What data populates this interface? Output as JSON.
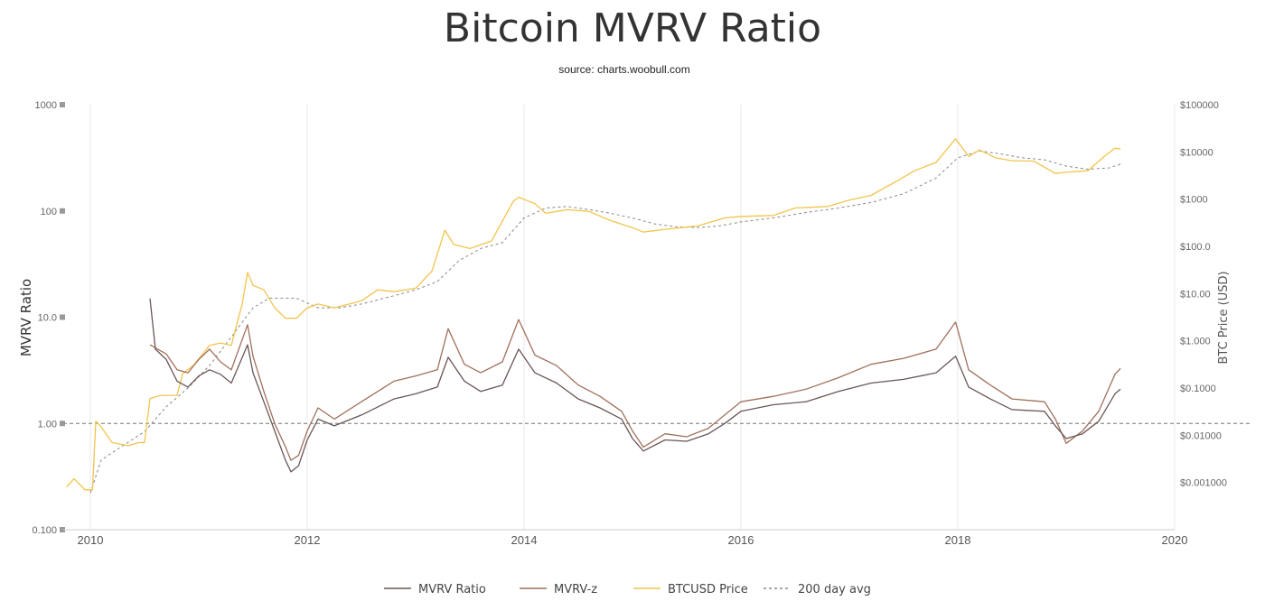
{
  "chart_data": {
    "type": "line",
    "title": "Bitcoin MVRV Ratio",
    "subtitle": "source: charts.woobull.com",
    "y_left_label": "MVRV Ratio",
    "y_right_label": "BTC Price (USD)",
    "y_left_scale": "log",
    "y_right_scale": "log",
    "y_left_range": [
      0.1,
      1000
    ],
    "y_right_range": [
      0.0001,
      100000
    ],
    "x_range": [
      2009.75,
      2020
    ],
    "x_ticks": [
      "2010",
      "2012",
      "2014",
      "2016",
      "2018",
      "2020"
    ],
    "y_left_ticks": [
      "0.100",
      "1.00",
      "10.0",
      "100",
      "1000"
    ],
    "y_right_ticks": [
      "$0.001000",
      "$0.01000",
      "$0.1000",
      "$1.000",
      "$10.00",
      "$100.0",
      "$1000",
      "$10000",
      "$100000"
    ],
    "reference_line_y": 1,
    "grid": "vertical gridlines at year ticks",
    "legend_position": "bottom-center",
    "series": [
      {
        "name": "MVRV Ratio",
        "axis": "left",
        "color": "#6b5656",
        "points": [
          [
            2010.55,
            15
          ],
          [
            2010.6,
            5
          ],
          [
            2010.7,
            4
          ],
          [
            2010.8,
            2.5
          ],
          [
            2010.9,
            2.2
          ],
          [
            2011.0,
            2.8
          ],
          [
            2011.1,
            3.2
          ],
          [
            2011.2,
            2.9
          ],
          [
            2011.3,
            2.4
          ],
          [
            2011.45,
            5.5
          ],
          [
            2011.5,
            3
          ],
          [
            2011.6,
            1.6
          ],
          [
            2011.7,
            0.85
          ],
          [
            2011.8,
            0.45
          ],
          [
            2011.85,
            0.35
          ],
          [
            2011.92,
            0.4
          ],
          [
            2012.0,
            0.7
          ],
          [
            2012.1,
            1.1
          ],
          [
            2012.25,
            0.95
          ],
          [
            2012.5,
            1.2
          ],
          [
            2012.8,
            1.7
          ],
          [
            2013.0,
            1.9
          ],
          [
            2013.2,
            2.2
          ],
          [
            2013.3,
            4.2
          ],
          [
            2013.45,
            2.5
          ],
          [
            2013.6,
            2.0
          ],
          [
            2013.8,
            2.3
          ],
          [
            2013.95,
            5.0
          ],
          [
            2014.1,
            3.0
          ],
          [
            2014.3,
            2.4
          ],
          [
            2014.5,
            1.7
          ],
          [
            2014.7,
            1.4
          ],
          [
            2014.9,
            1.1
          ],
          [
            2015.0,
            0.72
          ],
          [
            2015.1,
            0.55
          ],
          [
            2015.3,
            0.7
          ],
          [
            2015.5,
            0.68
          ],
          [
            2015.7,
            0.8
          ],
          [
            2015.85,
            1.0
          ],
          [
            2016.0,
            1.3
          ],
          [
            2016.3,
            1.5
          ],
          [
            2016.6,
            1.6
          ],
          [
            2016.9,
            2.0
          ],
          [
            2017.2,
            2.4
          ],
          [
            2017.5,
            2.6
          ],
          [
            2017.8,
            3.0
          ],
          [
            2017.98,
            4.3
          ],
          [
            2018.1,
            2.2
          ],
          [
            2018.3,
            1.7
          ],
          [
            2018.5,
            1.35
          ],
          [
            2018.8,
            1.3
          ],
          [
            2018.9,
            0.95
          ],
          [
            2019.0,
            0.72
          ],
          [
            2019.15,
            0.8
          ],
          [
            2019.3,
            1.05
          ],
          [
            2019.45,
            1.9
          ],
          [
            2019.5,
            2.1
          ]
        ]
      },
      {
        "name": "MVRV-z",
        "axis": "left",
        "color": "#a0705c",
        "points": [
          [
            2010.55,
            5.5
          ],
          [
            2010.7,
            4.5
          ],
          [
            2010.8,
            3.2
          ],
          [
            2010.9,
            3.0
          ],
          [
            2011.0,
            4.0
          ],
          [
            2011.1,
            5.0
          ],
          [
            2011.2,
            3.8
          ],
          [
            2011.3,
            3.2
          ],
          [
            2011.45,
            8.5
          ],
          [
            2011.5,
            4.3
          ],
          [
            2011.6,
            2.0
          ],
          [
            2011.7,
            1.0
          ],
          [
            2011.8,
            0.6
          ],
          [
            2011.85,
            0.45
          ],
          [
            2011.92,
            0.5
          ],
          [
            2012.0,
            0.85
          ],
          [
            2012.1,
            1.4
          ],
          [
            2012.25,
            1.1
          ],
          [
            2012.5,
            1.6
          ],
          [
            2012.8,
            2.5
          ],
          [
            2013.0,
            2.8
          ],
          [
            2013.2,
            3.2
          ],
          [
            2013.3,
            7.8
          ],
          [
            2013.45,
            3.6
          ],
          [
            2013.6,
            3.0
          ],
          [
            2013.8,
            3.8
          ],
          [
            2013.95,
            9.5
          ],
          [
            2014.1,
            4.4
          ],
          [
            2014.3,
            3.5
          ],
          [
            2014.5,
            2.3
          ],
          [
            2014.7,
            1.8
          ],
          [
            2014.9,
            1.3
          ],
          [
            2015.0,
            0.85
          ],
          [
            2015.1,
            0.6
          ],
          [
            2015.3,
            0.8
          ],
          [
            2015.5,
            0.75
          ],
          [
            2015.7,
            0.9
          ],
          [
            2015.85,
            1.2
          ],
          [
            2016.0,
            1.6
          ],
          [
            2016.3,
            1.8
          ],
          [
            2016.6,
            2.1
          ],
          [
            2016.9,
            2.7
          ],
          [
            2017.2,
            3.6
          ],
          [
            2017.5,
            4.1
          ],
          [
            2017.8,
            5.0
          ],
          [
            2017.98,
            9.0
          ],
          [
            2018.1,
            3.2
          ],
          [
            2018.3,
            2.3
          ],
          [
            2018.5,
            1.7
          ],
          [
            2018.8,
            1.6
          ],
          [
            2018.9,
            1.1
          ],
          [
            2019.0,
            0.65
          ],
          [
            2019.15,
            0.85
          ],
          [
            2019.3,
            1.3
          ],
          [
            2019.45,
            2.9
          ],
          [
            2019.5,
            3.3
          ]
        ]
      },
      {
        "name": "BTCUSD Price",
        "axis": "right",
        "color": "#f2c44c",
        "points": [
          [
            2009.78,
            0.0008
          ],
          [
            2009.85,
            0.0012
          ],
          [
            2009.95,
            0.0007
          ],
          [
            2010.02,
            0.0007
          ],
          [
            2010.05,
            0.02
          ],
          [
            2010.1,
            0.015
          ],
          [
            2010.2,
            0.007
          ],
          [
            2010.35,
            0.006
          ],
          [
            2010.45,
            0.007
          ],
          [
            2010.5,
            0.007
          ],
          [
            2010.55,
            0.06
          ],
          [
            2010.65,
            0.07
          ],
          [
            2010.8,
            0.07
          ],
          [
            2010.85,
            0.2
          ],
          [
            2010.95,
            0.3
          ],
          [
            2011.1,
            0.8
          ],
          [
            2011.2,
            0.9
          ],
          [
            2011.3,
            0.8
          ],
          [
            2011.4,
            6
          ],
          [
            2011.45,
            28
          ],
          [
            2011.5,
            15
          ],
          [
            2011.6,
            12
          ],
          [
            2011.7,
            5
          ],
          [
            2011.8,
            3
          ],
          [
            2011.9,
            3
          ],
          [
            2012.0,
            5
          ],
          [
            2012.1,
            6
          ],
          [
            2012.25,
            5
          ],
          [
            2012.5,
            7
          ],
          [
            2012.65,
            12
          ],
          [
            2012.8,
            11
          ],
          [
            2013.0,
            13
          ],
          [
            2013.15,
            30
          ],
          [
            2013.27,
            220
          ],
          [
            2013.35,
            110
          ],
          [
            2013.5,
            90
          ],
          [
            2013.7,
            130
          ],
          [
            2013.9,
            900
          ],
          [
            2013.95,
            1100
          ],
          [
            2014.1,
            800
          ],
          [
            2014.2,
            500
          ],
          [
            2014.4,
            600
          ],
          [
            2014.6,
            550
          ],
          [
            2014.8,
            350
          ],
          [
            2015.0,
            250
          ],
          [
            2015.1,
            200
          ],
          [
            2015.3,
            230
          ],
          [
            2015.6,
            270
          ],
          [
            2015.85,
            400
          ],
          [
            2016.0,
            430
          ],
          [
            2016.3,
            450
          ],
          [
            2016.5,
            650
          ],
          [
            2016.8,
            700
          ],
          [
            2017.0,
            950
          ],
          [
            2017.2,
            1200
          ],
          [
            2017.45,
            2500
          ],
          [
            2017.6,
            4000
          ],
          [
            2017.8,
            6000
          ],
          [
            2017.98,
            19000
          ],
          [
            2018.1,
            8000
          ],
          [
            2018.2,
            11000
          ],
          [
            2018.35,
            7500
          ],
          [
            2018.5,
            6500
          ],
          [
            2018.7,
            6400
          ],
          [
            2018.9,
            3500
          ],
          [
            2019.0,
            3700
          ],
          [
            2019.2,
            4000
          ],
          [
            2019.35,
            8000
          ],
          [
            2019.45,
            12000
          ],
          [
            2019.5,
            11500
          ]
        ]
      },
      {
        "name": "200 day avg",
        "axis": "right",
        "color": "#888888",
        "dashed": true,
        "points": [
          [
            2010.0,
            0.0006
          ],
          [
            2010.1,
            0.003
          ],
          [
            2010.3,
            0.006
          ],
          [
            2010.5,
            0.012
          ],
          [
            2010.7,
            0.04
          ],
          [
            2010.9,
            0.1
          ],
          [
            2011.1,
            0.3
          ],
          [
            2011.3,
            1.2
          ],
          [
            2011.5,
            5
          ],
          [
            2011.65,
            8
          ],
          [
            2011.9,
            8
          ],
          [
            2012.1,
            5
          ],
          [
            2012.3,
            5
          ],
          [
            2012.5,
            6
          ],
          [
            2012.8,
            9
          ],
          [
            2013.0,
            12
          ],
          [
            2013.2,
            18
          ],
          [
            2013.4,
            50
          ],
          [
            2013.6,
            90
          ],
          [
            2013.8,
            120
          ],
          [
            2014.0,
            400
          ],
          [
            2014.2,
            650
          ],
          [
            2014.4,
            700
          ],
          [
            2014.6,
            600
          ],
          [
            2014.8,
            500
          ],
          [
            2015.0,
            400
          ],
          [
            2015.2,
            300
          ],
          [
            2015.4,
            260
          ],
          [
            2015.6,
            250
          ],
          [
            2015.8,
            270
          ],
          [
            2016.0,
            330
          ],
          [
            2016.3,
            400
          ],
          [
            2016.6,
            520
          ],
          [
            2016.9,
            650
          ],
          [
            2017.2,
            850
          ],
          [
            2017.5,
            1300
          ],
          [
            2017.8,
            2800
          ],
          [
            2018.0,
            7500
          ],
          [
            2018.2,
            10500
          ],
          [
            2018.4,
            9000
          ],
          [
            2018.6,
            7500
          ],
          [
            2018.8,
            6800
          ],
          [
            2019.0,
            5000
          ],
          [
            2019.2,
            4300
          ],
          [
            2019.4,
            4600
          ],
          [
            2019.5,
            5500
          ]
        ]
      }
    ]
  },
  "legend": [
    {
      "label": "MVRV Ratio",
      "color": "#6b5656",
      "dashed": false
    },
    {
      "label": "MVRV-z",
      "color": "#a0705c",
      "dashed": false
    },
    {
      "label": "BTCUSD Price",
      "color": "#f2c44c",
      "dashed": false
    },
    {
      "label": "200 day avg",
      "color": "#888888",
      "dashed": true
    }
  ]
}
